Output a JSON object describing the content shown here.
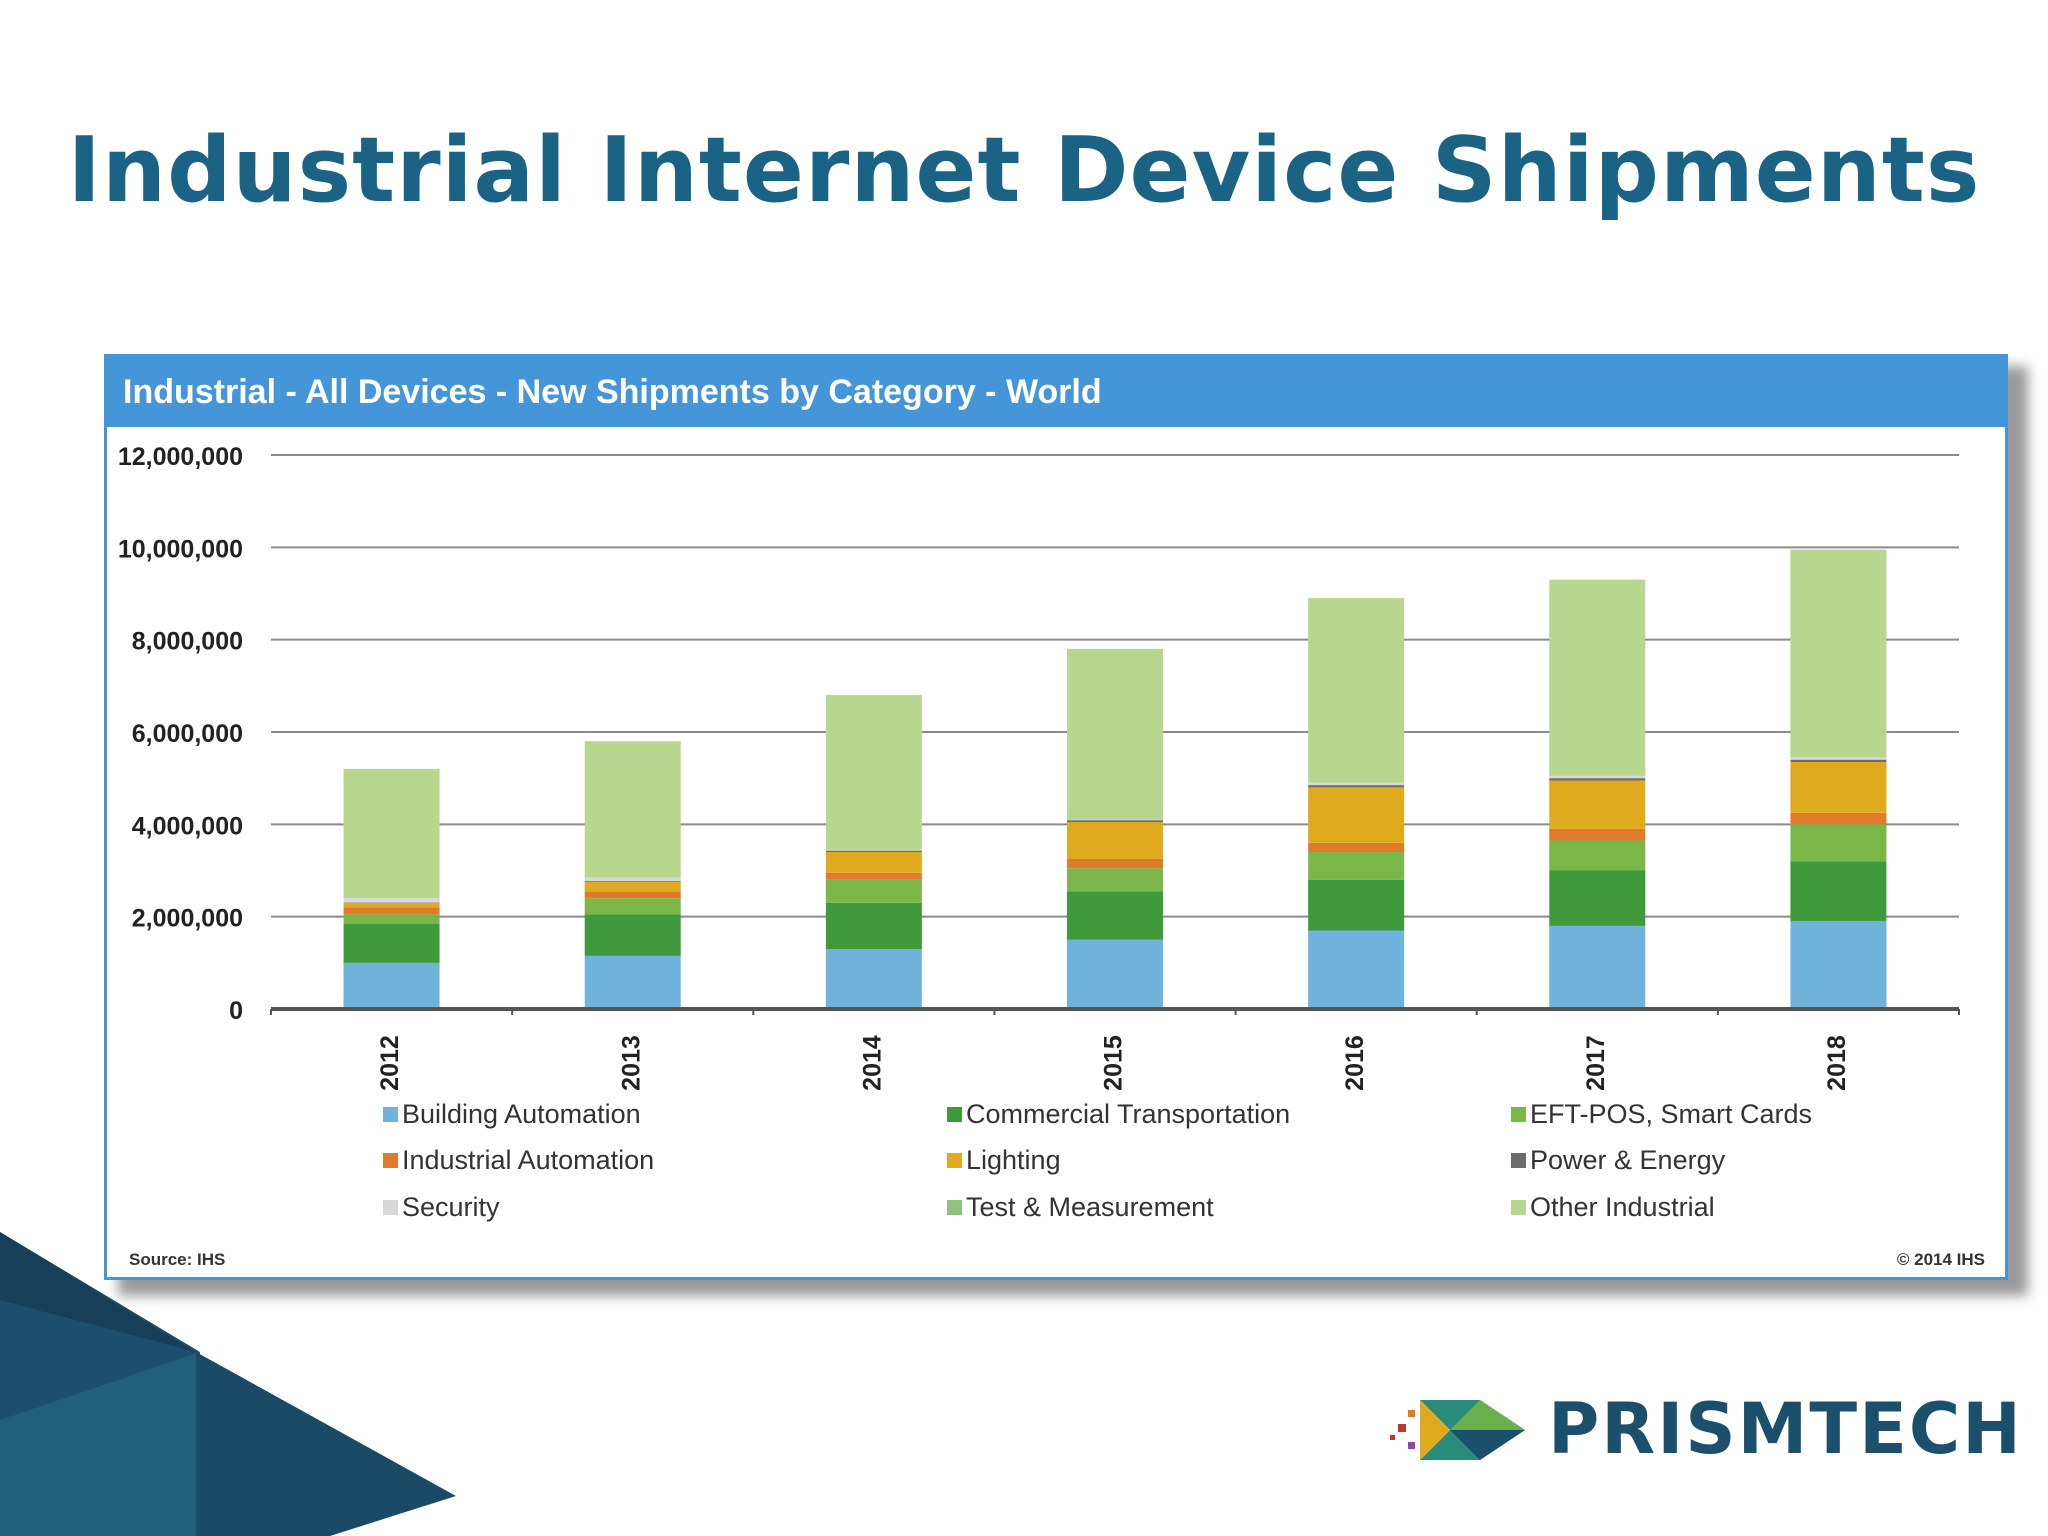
{
  "slide": {
    "title": "Industrial Internet Device Shipments",
    "brand_name": "PRISMTECH"
  },
  "chart_data": {
    "type": "bar",
    "stacked": true,
    "title": "Industrial - All Devices - New Shipments by Category - World",
    "categories": [
      "2012",
      "2013",
      "2014",
      "2015",
      "2016",
      "2017",
      "2018"
    ],
    "ylim": [
      0,
      12000000
    ],
    "yticks": [
      "0",
      "2,000,000",
      "4,000,000",
      "6,000,000",
      "8,000,000",
      "10,000,000",
      "12,000,000"
    ],
    "grid": true,
    "legend_position": "bottom",
    "series": [
      {
        "name": "Building Automation",
        "color": "#6fb3dd",
        "values": [
          1000000,
          1150000,
          1300000,
          1500000,
          1700000,
          1800000,
          1900000
        ]
      },
      {
        "name": "Commercial Transportation",
        "color": "#3e9a3a",
        "values": [
          850000,
          900000,
          1000000,
          1050000,
          1100000,
          1200000,
          1300000
        ]
      },
      {
        "name": "EFT-POS, Smart Cards",
        "color": "#7ab648",
        "values": [
          200000,
          350000,
          500000,
          500000,
          600000,
          650000,
          800000
        ]
      },
      {
        "name": "Industrial Automation",
        "color": "#e07b2b",
        "values": [
          150000,
          150000,
          150000,
          200000,
          200000,
          250000,
          250000
        ]
      },
      {
        "name": "Lighting",
        "color": "#e0aa1f",
        "values": [
          100000,
          200000,
          450000,
          800000,
          1200000,
          1050000,
          1100000
        ]
      },
      {
        "name": "Power & Energy",
        "color": "#6d6d6d",
        "values": [
          10000,
          20000,
          30000,
          40000,
          50000,
          50000,
          50000
        ]
      },
      {
        "name": "Security",
        "color": "#d8d8d8",
        "values": [
          90000,
          80000,
          20000,
          10000,
          50000,
          50000,
          50000
        ]
      },
      {
        "name": "Test & Measurement",
        "color": "#8fc27e",
        "values": [
          0,
          0,
          0,
          0,
          0,
          0,
          0
        ]
      },
      {
        "name": "Other Industrial",
        "color": "#b7d78e",
        "values": [
          2800000,
          2950000,
          3350000,
          3700000,
          4000000,
          4250000,
          4500000
        ]
      }
    ],
    "source": "Source: IHS",
    "copyright": "© 2014 IHS"
  }
}
